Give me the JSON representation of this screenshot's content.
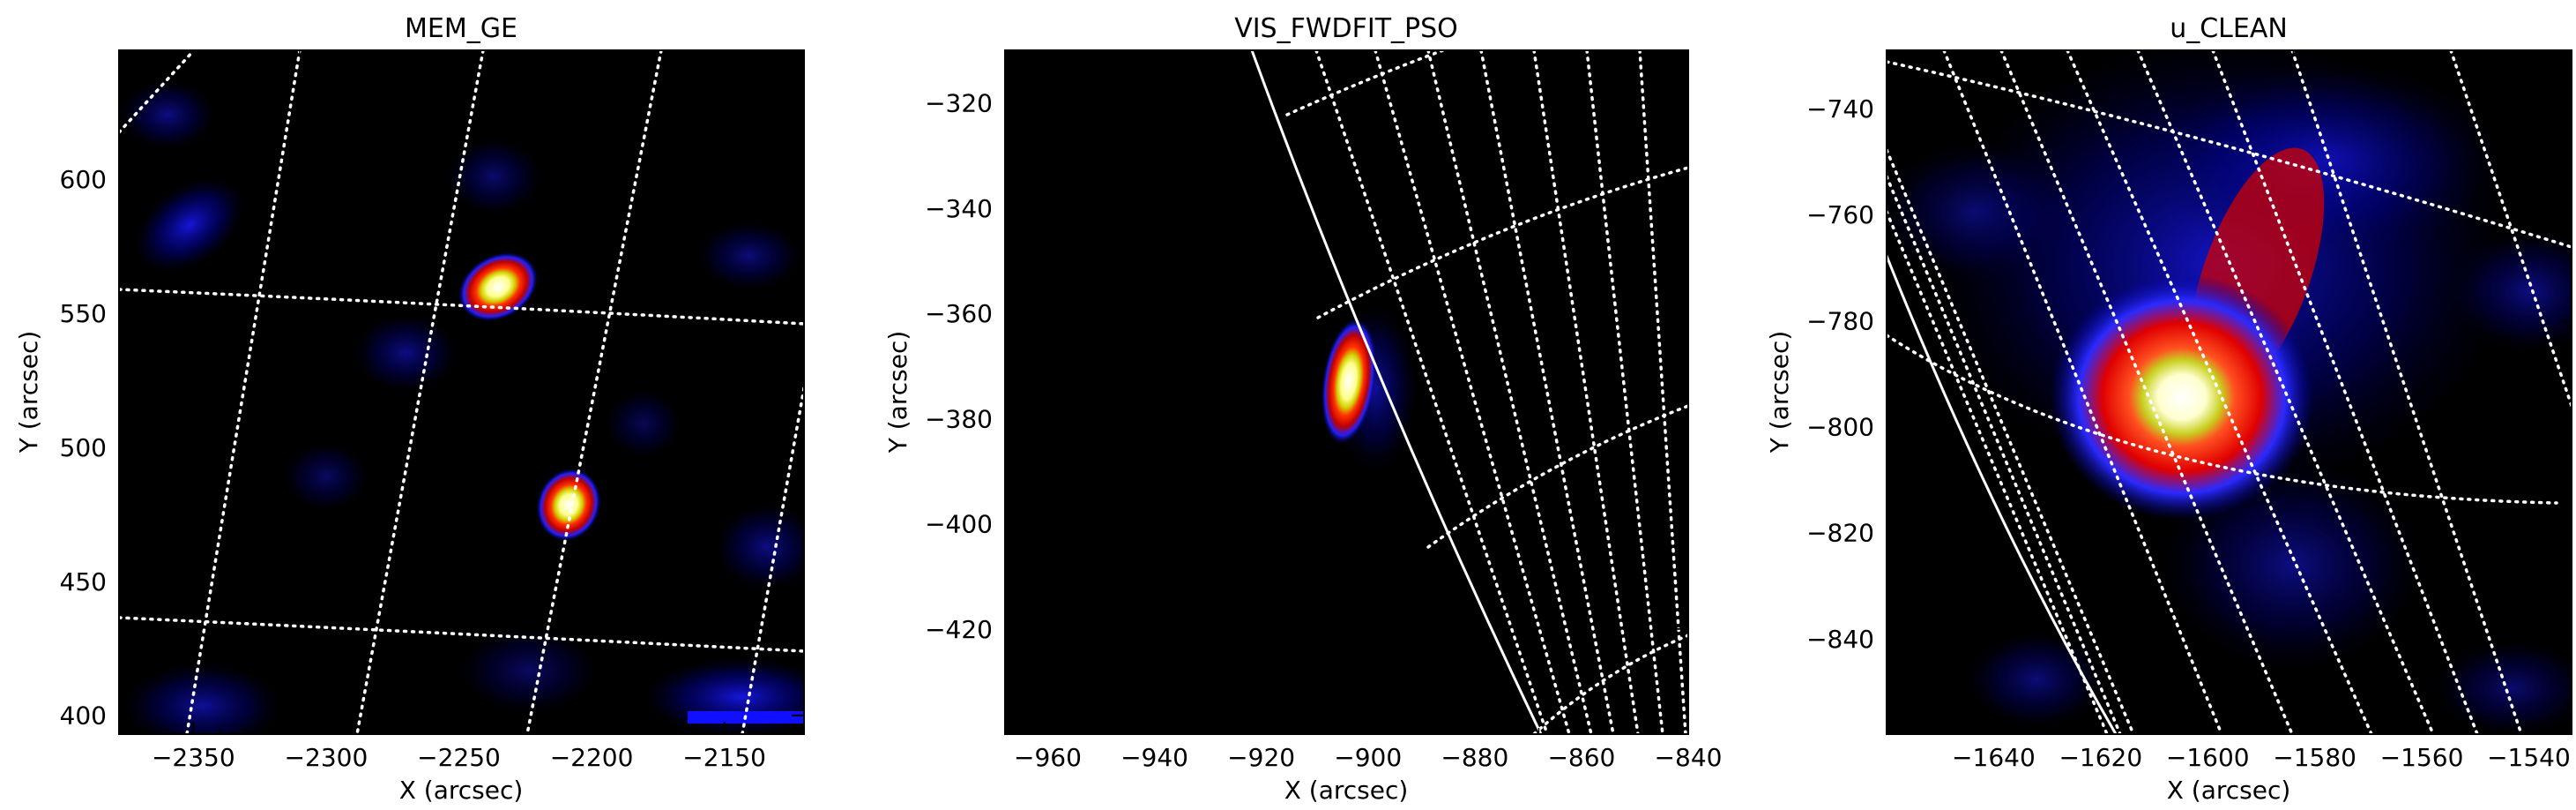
{
  "panels": [
    {
      "id": "mem",
      "title": "MEM_GE",
      "xlabel": "X (arcsec)",
      "ylabel": "Y (arcsec)",
      "xlim": [
        -2378,
        -2120
      ],
      "ylim": [
        393,
        648
      ],
      "xticks": [
        -2350,
        -2300,
        -2250,
        -2200,
        -2150
      ],
      "yticks": [
        400,
        450,
        500,
        550,
        600
      ],
      "sources": [
        {
          "x": -2234,
          "y": 562,
          "peak": 1.0
        },
        {
          "x": -2205,
          "y": 480,
          "peak": 1.0
        }
      ]
    },
    {
      "id": "vis",
      "title": "VIS_FWDFIT_PSO",
      "xlabel": "X (arcsec)",
      "ylabel": "Y (arcsec)",
      "xlim": [
        -968,
        -840
      ],
      "ylim": [
        -440,
        -310
      ],
      "xticks": [
        -960,
        -940,
        -920,
        -900,
        -880,
        -860,
        -840
      ],
      "yticks": [
        -320,
        -340,
        -360,
        -380,
        -400,
        -420
      ],
      "sources": [
        {
          "x": -900,
          "y": -373,
          "peak": 1.0
        }
      ]
    },
    {
      "id": "uclean",
      "title": "u_CLEAN",
      "xlabel": "X (arcsec)",
      "ylabel": "Y (arcsec)",
      "xlim": [
        -1660,
        -1532
      ],
      "ylim": [
        -858,
        -729
      ],
      "xticks": [
        -1640,
        -1620,
        -1600,
        -1580,
        -1560,
        -1540
      ],
      "yticks": [
        -740,
        -760,
        -780,
        -800,
        -820,
        -840
      ],
      "sources": [
        {
          "x": -1596,
          "y": -795,
          "peak": 1.0
        }
      ]
    }
  ],
  "colormap": [
    "#000000",
    "#0000a0",
    "#1e1eff",
    "#c80000",
    "#ff3a00",
    "#d2d200",
    "#ffffff"
  ]
}
